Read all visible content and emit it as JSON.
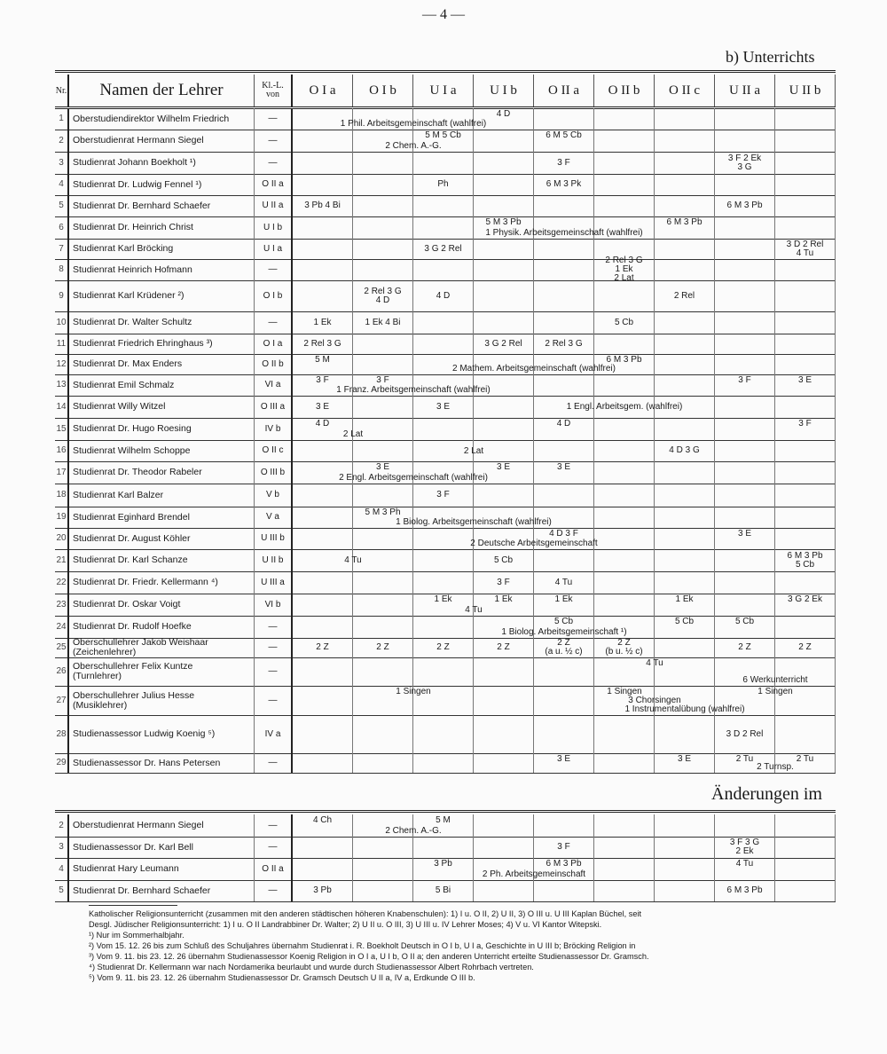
{
  "page_number": "— 4 —",
  "section_title": "b) Unterrichts",
  "changes_title": "Änderungen im",
  "header": {
    "nr": "Nr.",
    "name": "Namen der Lehrer",
    "kl": "Kl.-L.\nvon",
    "classes": [
      "O I a",
      "O I b",
      "U I a",
      "U I b",
      "O II a",
      "O II b",
      "O II c",
      "U II a",
      "U II b"
    ]
  },
  "rows": [
    {
      "nr": "1",
      "name": "Oberstudiendirektor Wilhelm Friedrich",
      "kl": "—",
      "cells": {
        "3": "4 D"
      },
      "spans": [
        {
          "text": "1 Phil. Arbeitsgemeinschaft (wahlfrei)",
          "from": 0,
          "to": 3
        }
      ]
    },
    {
      "nr": "2",
      "name": "Oberstudienrat Hermann Siegel",
      "kl": "—",
      "cells": {
        "2": "5 M  5 Cb",
        "4": "6 M  5 Cb"
      },
      "spans": [
        {
          "text": "2 Chem. A.-G.",
          "from": 1,
          "to": 2
        }
      ]
    },
    {
      "nr": "3",
      "name": "Studienrat Johann Boekholt ¹)",
      "kl": "—",
      "cells": {
        "4": "3 F",
        "7": "3 F  2 Ek\n3 G"
      },
      "spans": []
    },
    {
      "nr": "4",
      "name": "Studienrat Dr. Ludwig Fennel ¹)",
      "kl": "O II a",
      "cells": {
        "2": "Ph",
        "4": "6 M  3 Pk"
      },
      "spans": []
    },
    {
      "nr": "5",
      "name": "Studienrat Dr. Bernhard Schaefer",
      "kl": "U II a",
      "cells": {
        "0": "3 Pb  4 Bi",
        "7": "6 M  3 Pb"
      },
      "spans": []
    },
    {
      "nr": "6",
      "name": "Studienrat Dr. Heinrich Christ",
      "kl": "U I b",
      "cells": {
        "3": "5 M  3 Pb",
        "6": "6 M  3 Pb"
      },
      "spans": [
        {
          "text": "1 Physik. Arbeitsgemeinschaft (wahlfrei)",
          "from": 2,
          "to": 6
        }
      ]
    },
    {
      "nr": "7",
      "name": "Studienrat Karl Bröcking",
      "kl": "U I a",
      "cells": {
        "2": "3 G  2 Rel",
        "8": "3 D  2 Rel\n4 Tu"
      },
      "spans": []
    },
    {
      "nr": "8",
      "name": "Studienrat Heinrich Hofmann",
      "kl": "—",
      "cells": {
        "5": "2 Rel  3 G\n1 Ek\n2 Lat"
      },
      "spans": []
    },
    {
      "nr": "9",
      "name": "Studienrat Karl Krüdener ²)",
      "kl": "O I b",
      "cells": {
        "1": "2 Rel  3 G\n4 D",
        "2": "4 D",
        "6": "2 Rel"
      },
      "spans": []
    },
    {
      "nr": "10",
      "name": "Studienrat Dr. Walter Schultz",
      "kl": "—",
      "cells": {
        "0": "1 Ek",
        "1": "1 Ek  4 Bi",
        "5": "5 Cb"
      },
      "spans": []
    },
    {
      "nr": "11",
      "name": "Studienrat Friedrich Ehringhaus ³)",
      "kl": "O I a",
      "cells": {
        "0": "2 Rel  3 G",
        "3": "3 G  2 Rel",
        "4": "2 Rel  3 G"
      },
      "spans": []
    },
    {
      "nr": "12",
      "name": "Studienrat Dr. Max Enders",
      "kl": "O II b",
      "cells": {
        "0": "5 M",
        "5": "6 M  3 Pb"
      },
      "spans": [
        {
          "text": "2 Mathem. Arbeitsgemeinschaft (wahlfrei)",
          "from": 1,
          "to": 6
        }
      ]
    },
    {
      "nr": "13",
      "name": "Studienrat Emil Schmalz",
      "kl": "VI a",
      "cells": {
        "0": "3 F",
        "1": "3 F",
        "7": "3 F",
        "8": "3 E"
      },
      "spans": [
        {
          "text": "1 Franz. Arbeitsgemeinschaft (wahlfrei)",
          "from": 0,
          "to": 3
        }
      ]
    },
    {
      "nr": "14",
      "name": "Studienrat Willy Witzel",
      "kl": "O III a",
      "cells": {
        "0": "3 E",
        "2": "3 E"
      },
      "spans": [
        {
          "text": "1 Engl. Arbeitsgem. (wahlfrei)",
          "from": 4,
          "to": 6,
          "mid": true
        }
      ]
    },
    {
      "nr": "15",
      "name": "Studienrat Dr. Hugo Roesing",
      "kl": "IV b",
      "cells": {
        "0": "4 D",
        "4": "4 D",
        "8": "3 F"
      },
      "spans": [
        {
          "text": "2 Lat",
          "from": 0,
          "to": 1
        }
      ]
    },
    {
      "nr": "16",
      "name": "Studienrat Wilhelm Schoppe",
      "kl": "O II c",
      "cells": {
        "6": "4 D  3 G"
      },
      "spans": [
        {
          "text": "2 Lat",
          "from": 2,
          "to": 3,
          "mid": true
        }
      ]
    },
    {
      "nr": "17",
      "name": "Studienrat Dr. Theodor Rabeler",
      "kl": "O III b",
      "cells": {
        "1": "3 E",
        "3": "3 E",
        "4": "3 E"
      },
      "spans": [
        {
          "text": "2 Engl. Arbeitsgemeinschaft (wahlfrei)",
          "from": 0,
          "to": 3
        }
      ]
    },
    {
      "nr": "18",
      "name": "Studienrat Karl Balzer",
      "kl": "V b",
      "cells": {
        "2": "3 F"
      },
      "spans": []
    },
    {
      "nr": "19",
      "name": "Studienrat Eginhard Brendel",
      "kl": "V a",
      "cells": {
        "1": "5 M  3 Ph"
      },
      "spans": [
        {
          "text": "1 Biolog. Arbeitsgemeinschaft (wahlfrei)",
          "from": 1,
          "to": 4
        }
      ]
    },
    {
      "nr": "20",
      "name": "Studienrat Dr. August Köhler",
      "kl": "U III b",
      "cells": {
        "4": "4 D  3 F",
        "7": "3 E"
      },
      "spans": [
        {
          "text": "2 Deutsche Arbeitsgemeinschaft",
          "from": 2,
          "to": 5
        }
      ]
    },
    {
      "nr": "21",
      "name": "Studienrat Dr. Karl Schanze",
      "kl": "U II b",
      "cells": {
        "3": "5 Cb",
        "8": "6 M  3 Pb\n5 Cb"
      },
      "spans": [
        {
          "text": "4 Tu",
          "from": 0,
          "to": 1,
          "mid": true
        }
      ]
    },
    {
      "nr": "22",
      "name": "Studienrat Dr. Friedr. Kellermann ⁴)",
      "kl": "U III a",
      "cells": {
        "3": "3 F",
        "4": "4 Tu"
      },
      "spans": []
    },
    {
      "nr": "23",
      "name": "Studienrat Dr. Oskar Voigt",
      "kl": "VI b",
      "cells": {
        "2": "1 Ek",
        "3": "1 Ek",
        "4": "1 Ek",
        "6": "1 Ek",
        "8": "3 G  2 Ek"
      },
      "spans": [
        {
          "text": "4 Tu",
          "from": 2,
          "to": 3
        }
      ]
    },
    {
      "nr": "24",
      "name": "Studienrat Dr. Rudolf Hoefke",
      "kl": "—",
      "cells": {
        "4": "5 Cb",
        "6": "5 Cb",
        "7": "5 Cb"
      },
      "spans": [
        {
          "text": "1 Biolog. Arbeitsgemeinschaft ¹)",
          "from": 3,
          "to": 5
        }
      ]
    },
    {
      "nr": "25",
      "name": "Oberschullehrer Jakob Weishaar\n(Zeichenlehrer)",
      "kl": "—",
      "cells": {
        "0": "2 Z",
        "1": "2 Z",
        "2": "2 Z",
        "3": "2 Z",
        "4": "2 Z\n(a u. ½ c)",
        "5": "2 Z\n(b u. ½ c)",
        "7": "2 Z",
        "8": "2 Z"
      },
      "spans": []
    },
    {
      "nr": "26",
      "name": "Oberschullehrer Felix Kuntze\n(Turnlehrer)",
      "kl": "—",
      "cells": {},
      "spans": [
        {
          "text": "4 Tu",
          "from": 5,
          "to": 6,
          "up": true
        },
        {
          "text": "6 Werkunterricht",
          "from": 7,
          "to": 8
        }
      ]
    },
    {
      "nr": "27",
      "name": "Oberschullehrer Julius Hesse\n(Musiklehrer)",
      "kl": "—",
      "cells": {},
      "spans": [
        {
          "text": "1 Singen",
          "from": 0,
          "to": 3,
          "up": true
        },
        {
          "text": "1 Singen",
          "from": 5,
          "to": 5,
          "up": true
        },
        {
          "text": "1 Singen",
          "from": 7,
          "to": 8,
          "up": true
        },
        {
          "text": "3 Chorsingen",
          "from": 5,
          "to": 6,
          "mid": true
        },
        {
          "text": "1 Instrumentalübung (wahlfrei)",
          "from": 5,
          "to": 7
        }
      ]
    },
    {
      "nr": "28",
      "name": "Studienassessor Ludwig Koenig ⁵)",
      "kl": "IV a",
      "cells": {
        "7": "3 D  2 Rel"
      },
      "spans": []
    },
    {
      "nr": "29",
      "name": "Studienassessor Dr. Hans Petersen",
      "kl": "—",
      "cells": {
        "4": "3 E",
        "6": "3 E",
        "7": "2 Tu",
        "8": "2 Tu"
      },
      "spans": [
        {
          "text": "2 Turnsp.",
          "from": 7,
          "to": 8
        }
      ]
    }
  ],
  "changes": [
    {
      "nr": "2",
      "name": "Oberstudienrat Hermann Siegel",
      "kl": "—",
      "cells": {
        "0": "4 Ch",
        "2": "5 M"
      },
      "spans": [
        {
          "text": "2 Chem. A.-G.",
          "from": 1,
          "to": 2
        }
      ]
    },
    {
      "nr": "3",
      "name": "Studienassessor Dr. Karl Bell",
      "kl": "—",
      "cells": {
        "4": "3 F",
        "7": "3 F  3 G\n2 Ek"
      },
      "spans": []
    },
    {
      "nr": "4",
      "name": "Studienrat Hary Leumann",
      "kl": "O II a",
      "cells": {
        "2": "3 Pb",
        "4": "6 M  3 Pb",
        "7": "4 Tu"
      },
      "spans": [
        {
          "text": "2 Ph. Arbeitsgemeinschaft",
          "from": 2,
          "to": 5
        }
      ]
    },
    {
      "nr": "5",
      "name": "Studienrat Dr. Bernhard Schaefer",
      "kl": "—",
      "cells": {
        "0": "3 Pb",
        "2": "5 Bi",
        "7": "6 M  3 Pb"
      },
      "spans": []
    }
  ],
  "footnotes": [
    "Katholischer Religionsunterricht (zusammen mit den anderen städtischen höheren Knabenschulen): 1) I u. O II, 2) U II, 3) O III u. U III Kaplan Büchel, seit",
    "Desgl. Jüdischer Religionsunterricht: 1) I u. O II Landrabbiner Dr. Walter; 2) U II u. O III, 3) U III u. IV Lehrer Moses; 4) V u. VI Kantor Witepski.",
    "¹) Nur im Sommerhalbjahr.",
    "²) Vom 15. 12. 26 bis zum Schluß des Schuljahres übernahm Studienrat i. R. Boekholt Deutsch in O I b, U I a, Geschichte in U III b; Bröcking Religion in",
    "³) Vom 9. 11. bis 23. 12. 26 übernahm Studienassessor Koenig Religion in O I a, U I b, O II a; den anderen Unterricht erteilte Studienassessor Dr. Gramsch.",
    "⁴) Studienrat Dr. Kellermann war nach Nordamerika beurlaubt und wurde durch Studienassessor Albert Rohrbach vertreten.",
    "⁵) Vom 9. 11. bis 23. 12. 26 übernahm Studienassessor Dr. Gramsch Deutsch U II a, IV a, Erdkunde O III b."
  ]
}
